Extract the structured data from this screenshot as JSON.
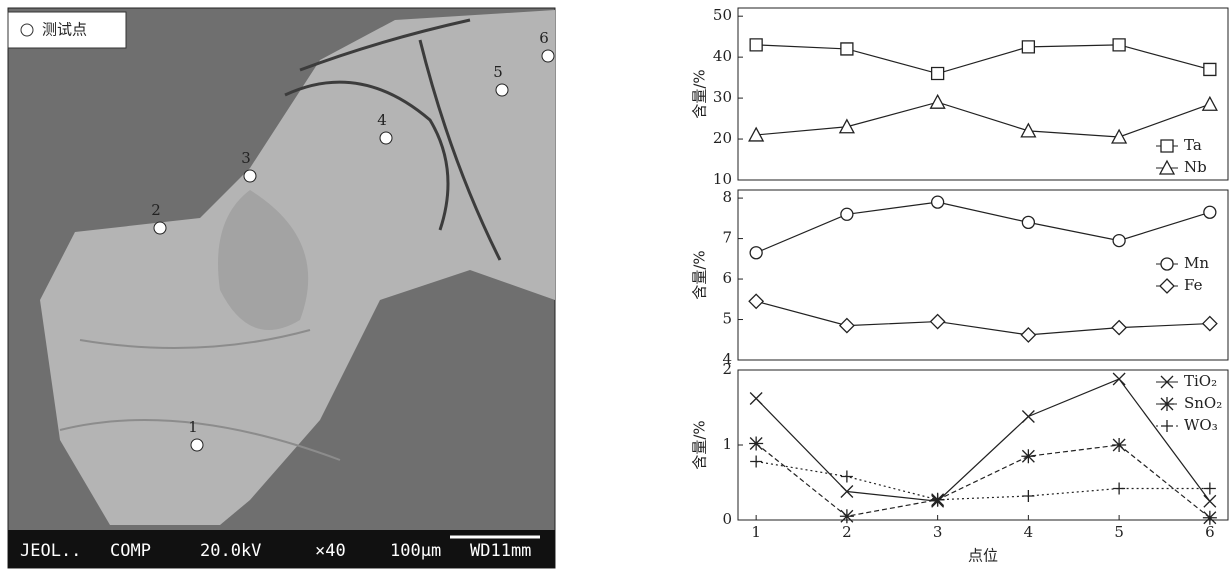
{
  "image": {
    "legend": "测试点",
    "points": [
      "1",
      "2",
      "3",
      "4",
      "5",
      "6"
    ],
    "footer": [
      "JEOL..",
      "COMP",
      "20.0kV",
      "×40",
      "100μm",
      "WD11mm"
    ]
  },
  "chart_data": [
    {
      "type": "line",
      "ylabel": "含量/%",
      "x": [
        1,
        2,
        3,
        4,
        5,
        6
      ],
      "xlim": [
        0.8,
        6.2
      ],
      "ylim": [
        10,
        52
      ],
      "yticks": [
        10,
        20,
        30,
        40,
        50
      ],
      "legend": "lower right",
      "series": [
        {
          "name": "Ta",
          "color": "#222222",
          "marker": "square",
          "style": "solid",
          "values": [
            43,
            42,
            36,
            42.5,
            43,
            37
          ]
        },
        {
          "name": "Nb",
          "color": "#222222",
          "marker": "triangle",
          "style": "solid",
          "values": [
            21,
            23,
            29,
            22,
            20.5,
            28.5
          ]
        }
      ]
    },
    {
      "type": "line",
      "ylabel": "含量/%",
      "x": [
        1,
        2,
        3,
        4,
        5,
        6
      ],
      "xlim": [
        0.8,
        6.2
      ],
      "ylim": [
        4,
        8.2
      ],
      "yticks": [
        4,
        5,
        6,
        7,
        8
      ],
      "legend": "center right",
      "series": [
        {
          "name": "Mn",
          "color": "#222222",
          "marker": "circle",
          "style": "solid",
          "values": [
            6.65,
            7.6,
            7.9,
            7.4,
            6.95,
            7.65
          ]
        },
        {
          "name": "Fe",
          "color": "#222222",
          "marker": "diamond",
          "style": "solid",
          "values": [
            5.45,
            4.85,
            4.95,
            4.62,
            4.8,
            4.9
          ]
        }
      ]
    },
    {
      "type": "line",
      "ylabel": "含量/%",
      "xlabel": "点位",
      "x": [
        1,
        2,
        3,
        4,
        5,
        6
      ],
      "xlim": [
        0.8,
        6.2
      ],
      "xticks": [
        1,
        2,
        3,
        4,
        5,
        6
      ],
      "ylim": [
        0,
        2
      ],
      "yticks": [
        0,
        1,
        2
      ],
      "legend": "upper right",
      "series": [
        {
          "name": "TiO₂",
          "color": "#222222",
          "marker": "x",
          "style": "solid",
          "values": [
            1.62,
            0.38,
            0.25,
            1.38,
            1.88,
            0.25
          ]
        },
        {
          "name": "SnO₂",
          "color": "#222222",
          "marker": "asterisk",
          "style": "dashed",
          "values": [
            1.02,
            0.05,
            0.27,
            0.85,
            1.0,
            0.03
          ]
        },
        {
          "name": "WO₃",
          "color": "#222222",
          "marker": "plus",
          "style": "dotted",
          "values": [
            0.78,
            0.58,
            0.27,
            0.32,
            0.42,
            0.42
          ]
        }
      ]
    }
  ]
}
